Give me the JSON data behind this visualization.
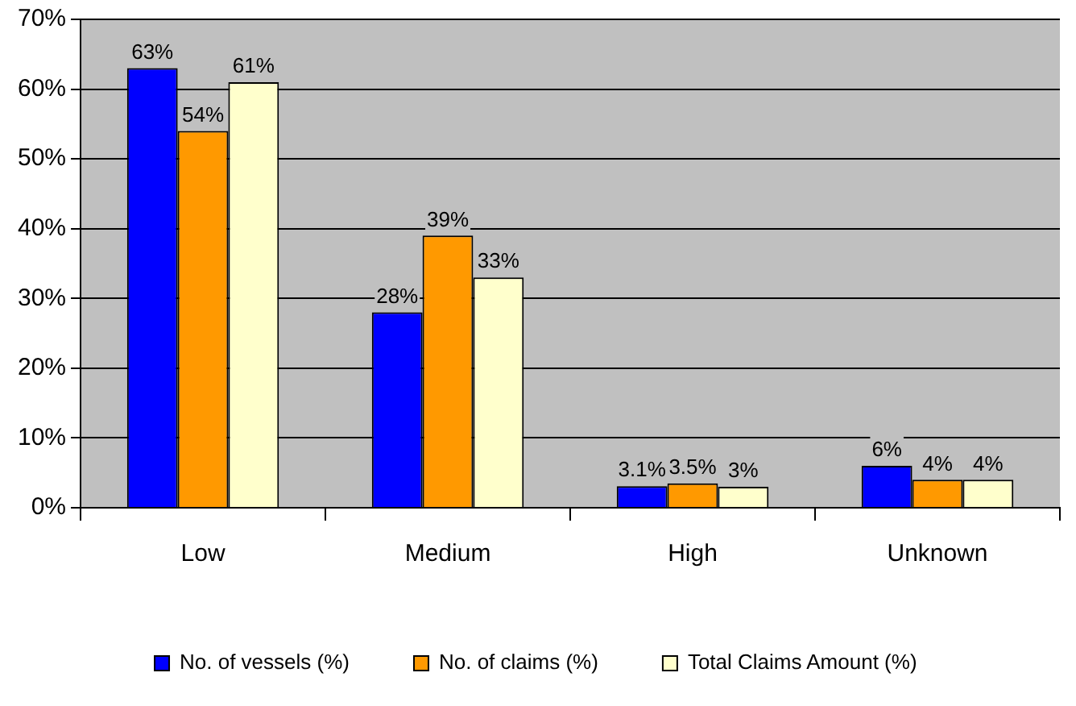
{
  "chart_data": {
    "type": "bar",
    "categories": [
      "Low",
      "Medium",
      "High",
      "Unknown"
    ],
    "series": [
      {
        "name": "No. of vessels (%)",
        "color": "#0000ff",
        "values": [
          63,
          28,
          3.1,
          6
        ],
        "value_labels": [
          "63%",
          "28%",
          "3.1%",
          "6%"
        ]
      },
      {
        "name": "No. of claims (%)",
        "color": "#ff9900",
        "values": [
          54,
          39,
          3.5,
          4
        ],
        "value_labels": [
          "54%",
          "39%",
          "3.5%",
          "4%"
        ]
      },
      {
        "name": "Total Claims Amount (%)",
        "color": "#ffffcc",
        "values": [
          61,
          33,
          3,
          4
        ],
        "value_labels": [
          "61%",
          "33%",
          "3%",
          "4%"
        ]
      }
    ],
    "ylim": [
      0,
      70
    ],
    "yticks": [
      {
        "value": 0,
        "label": "0%"
      },
      {
        "value": 10,
        "label": "10%"
      },
      {
        "value": 20,
        "label": "20%"
      },
      {
        "value": 30,
        "label": "30%"
      },
      {
        "value": 40,
        "label": "40%"
      },
      {
        "value": 50,
        "label": "50%"
      },
      {
        "value": 60,
        "label": "60%"
      },
      {
        "value": 70,
        "label": "70%"
      }
    ],
    "grid": "y",
    "legend": "bottom"
  }
}
